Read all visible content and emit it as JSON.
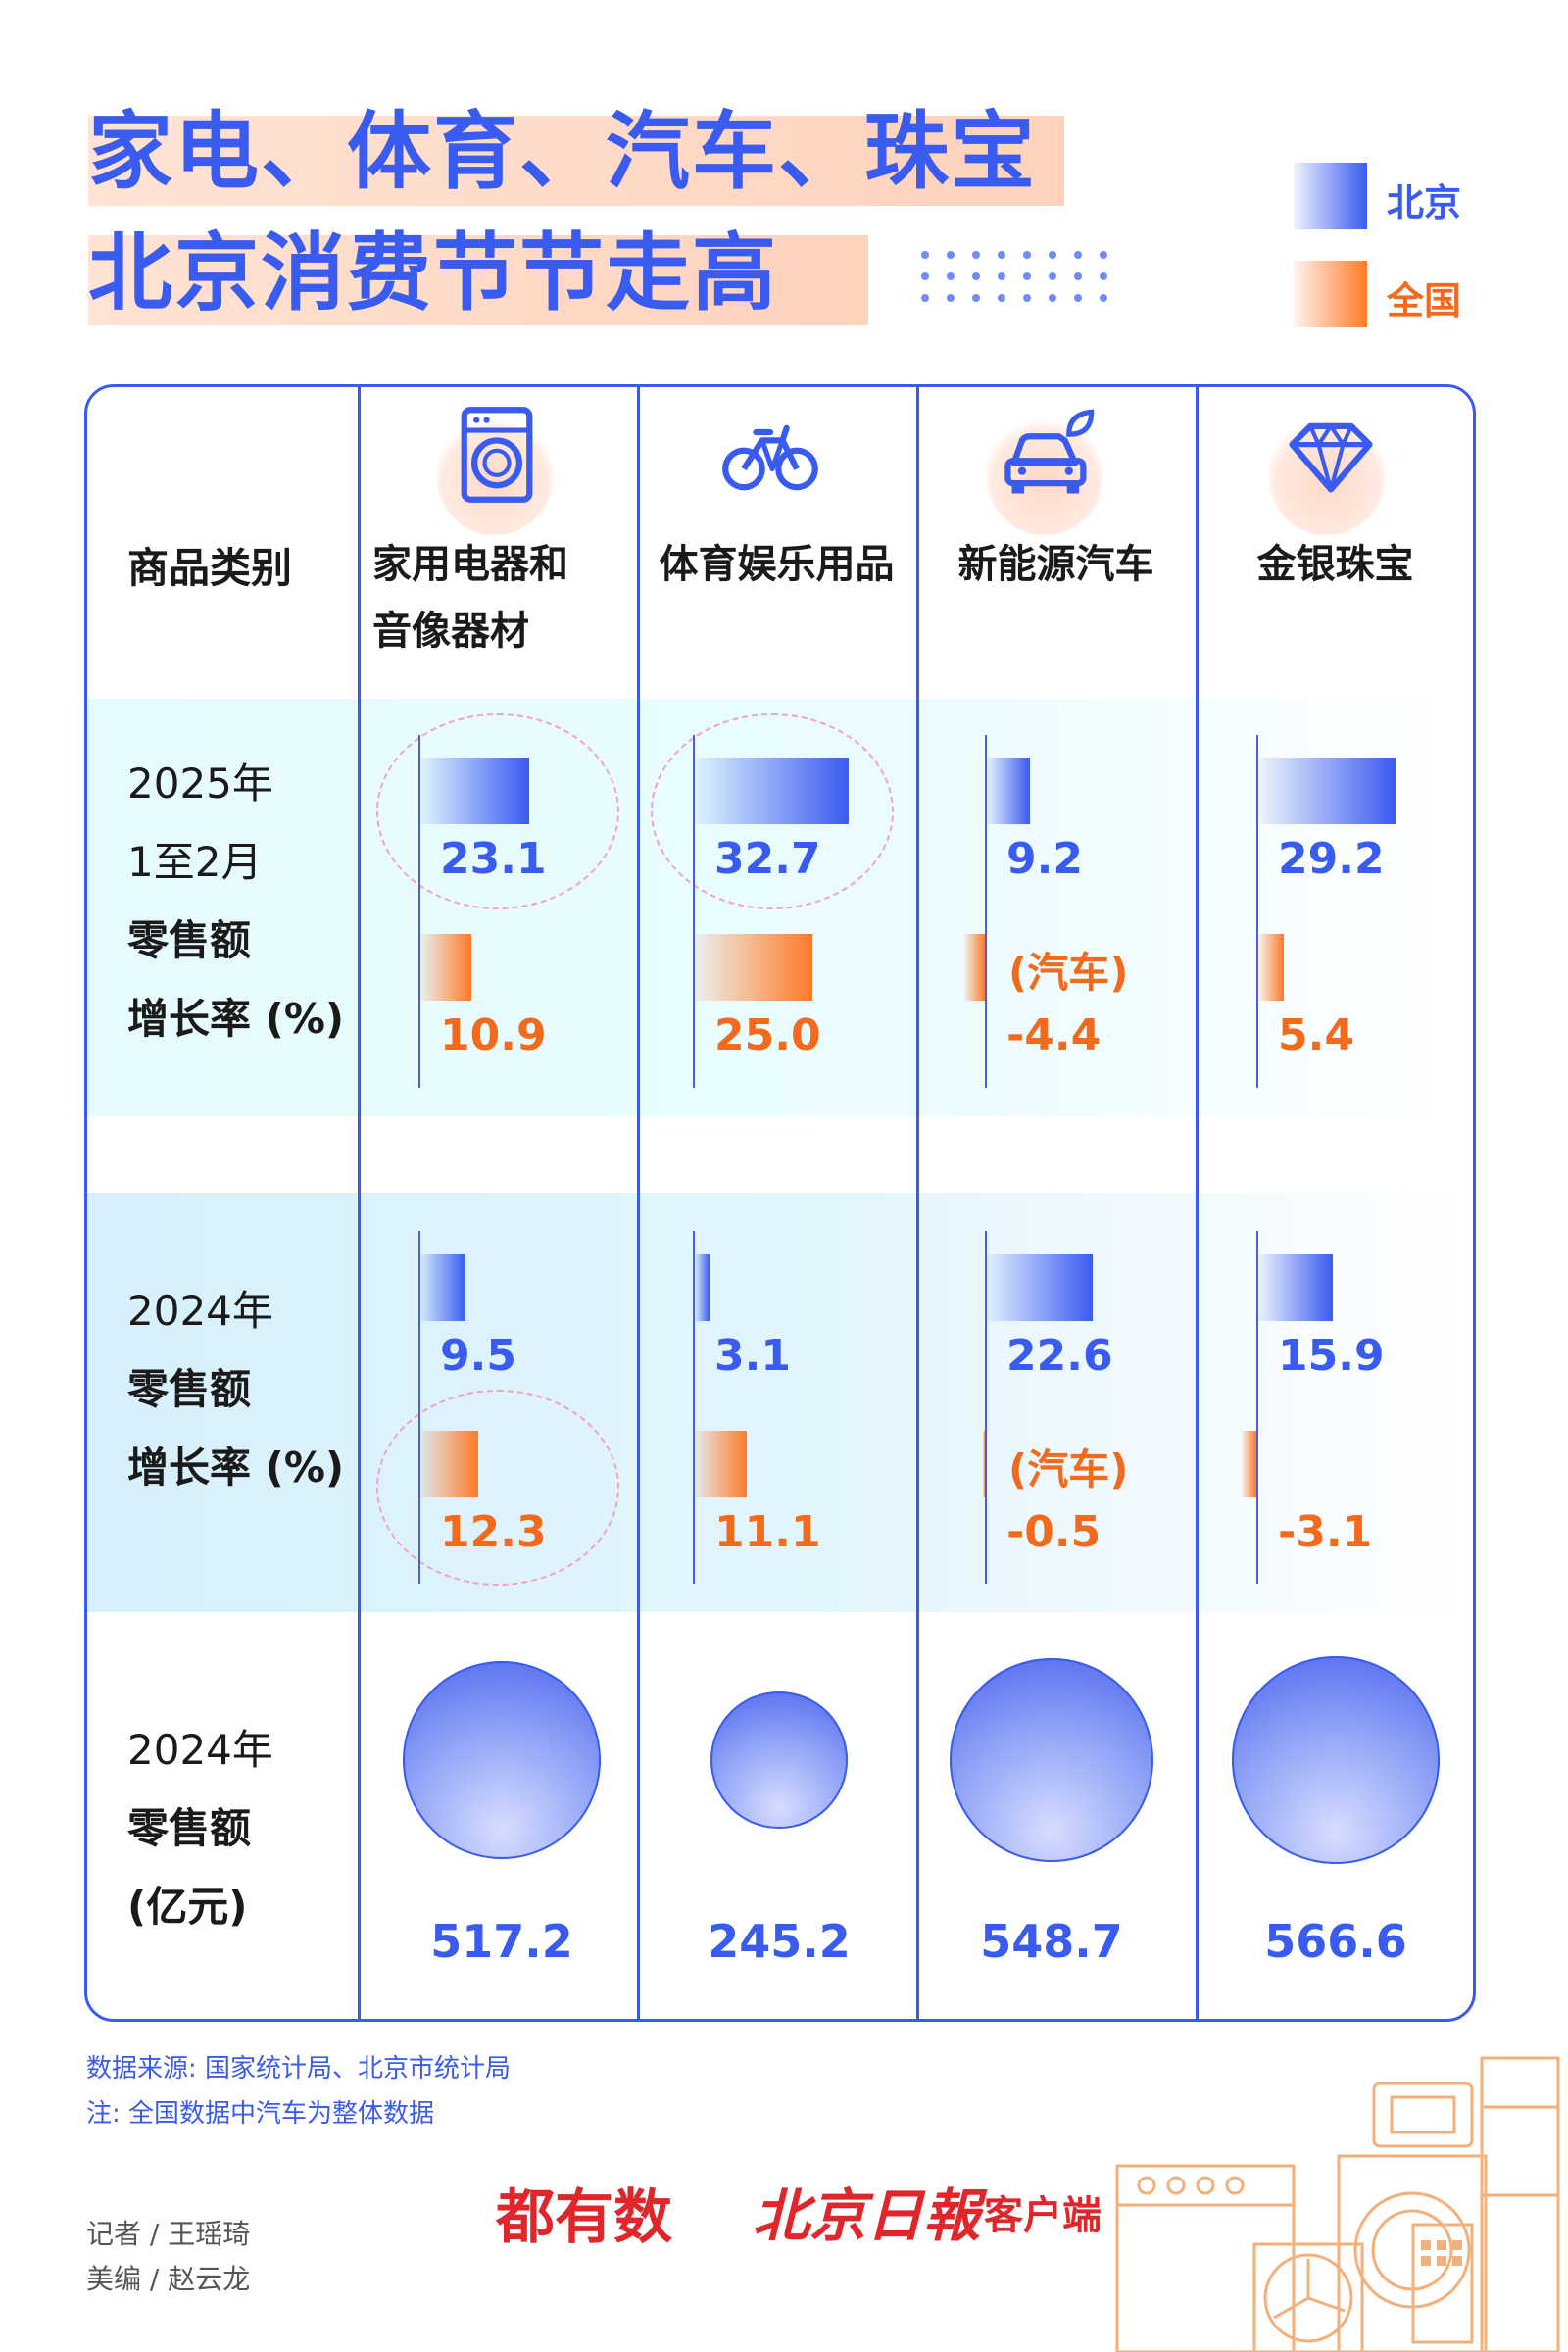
{
  "title": {
    "line1": "家电、体育、汽车、珠宝",
    "line2": "北京消费节节走高"
  },
  "legend": {
    "beijing": "北京",
    "national": "全国"
  },
  "colors": {
    "beijing": "#3a5bf0",
    "national": "#ff7a28"
  },
  "header": {
    "row_label": "商品类别"
  },
  "categories": [
    {
      "name_line1": "家用电器和",
      "name_line2": "音像器材",
      "icon": "washing-machine-icon"
    },
    {
      "name_line1": "体育娱乐用品",
      "name_line2": "",
      "icon": "bicycle-icon"
    },
    {
      "name_line1": "新能源汽车",
      "name_line2": "",
      "icon": "electric-car-icon"
    },
    {
      "name_line1": "金银珠宝",
      "name_line2": "",
      "icon": "diamond-icon"
    }
  ],
  "row_labels": {
    "r2025": {
      "l1": "2025年",
      "l2": "1至2月",
      "l3": "零售额",
      "l4": "增长率 (%)"
    },
    "r2024": {
      "l1": "2024年",
      "l2": "零售额",
      "l3": "增长率 (%)"
    },
    "sales": {
      "l1": "2024年",
      "l2": "零售额",
      "l3": "(亿元)"
    }
  },
  "car_note": "(汽车)",
  "chart_data": [
    {
      "type": "bar",
      "title": "2025年1至2月零售额增长率 (%)",
      "categories": [
        "家用电器和音像器材",
        "体育娱乐用品",
        "新能源汽车",
        "金银珠宝"
      ],
      "series": [
        {
          "name": "北京",
          "values": [
            23.1,
            32.7,
            9.2,
            29.2
          ],
          "labels": [
            "23.1",
            "32.7",
            "9.2",
            "29.2"
          ]
        },
        {
          "name": "全国",
          "values": [
            10.9,
            25.0,
            -4.4,
            5.4
          ],
          "labels": [
            "10.9",
            "25.0",
            "-4.4",
            "5.4"
          ]
        }
      ]
    },
    {
      "type": "bar",
      "title": "2024年零售额增长率 (%)",
      "categories": [
        "家用电器和音像器材",
        "体育娱乐用品",
        "新能源汽车",
        "金银珠宝"
      ],
      "series": [
        {
          "name": "北京",
          "values": [
            9.5,
            3.1,
            22.6,
            15.9
          ],
          "labels": [
            "9.5",
            "3.1",
            "22.6",
            "15.9"
          ]
        },
        {
          "name": "全国",
          "values": [
            12.3,
            11.1,
            -0.5,
            -3.1
          ],
          "labels": [
            "12.3",
            "11.1",
            "-0.5",
            "-3.1"
          ]
        }
      ]
    },
    {
      "type": "scatter",
      "title": "2024年零售额 (亿元)",
      "categories": [
        "家用电器和音像器材",
        "体育娱乐用品",
        "新能源汽车",
        "金银珠宝"
      ],
      "values": [
        517.2,
        245.2,
        548.7,
        566.6
      ],
      "labels": [
        "517.2",
        "245.2",
        "548.7",
        "566.6"
      ]
    }
  ],
  "footer": {
    "source": "数据来源: 国家统计局、北京市统计局",
    "note": "注: 全国数据中汽车为整体数据",
    "reporter": "记者 / 王瑶琦",
    "editor": "美编 / 赵云龙",
    "brand1": "都有数",
    "brand2": "北京日報",
    "brand3": "客户端"
  }
}
